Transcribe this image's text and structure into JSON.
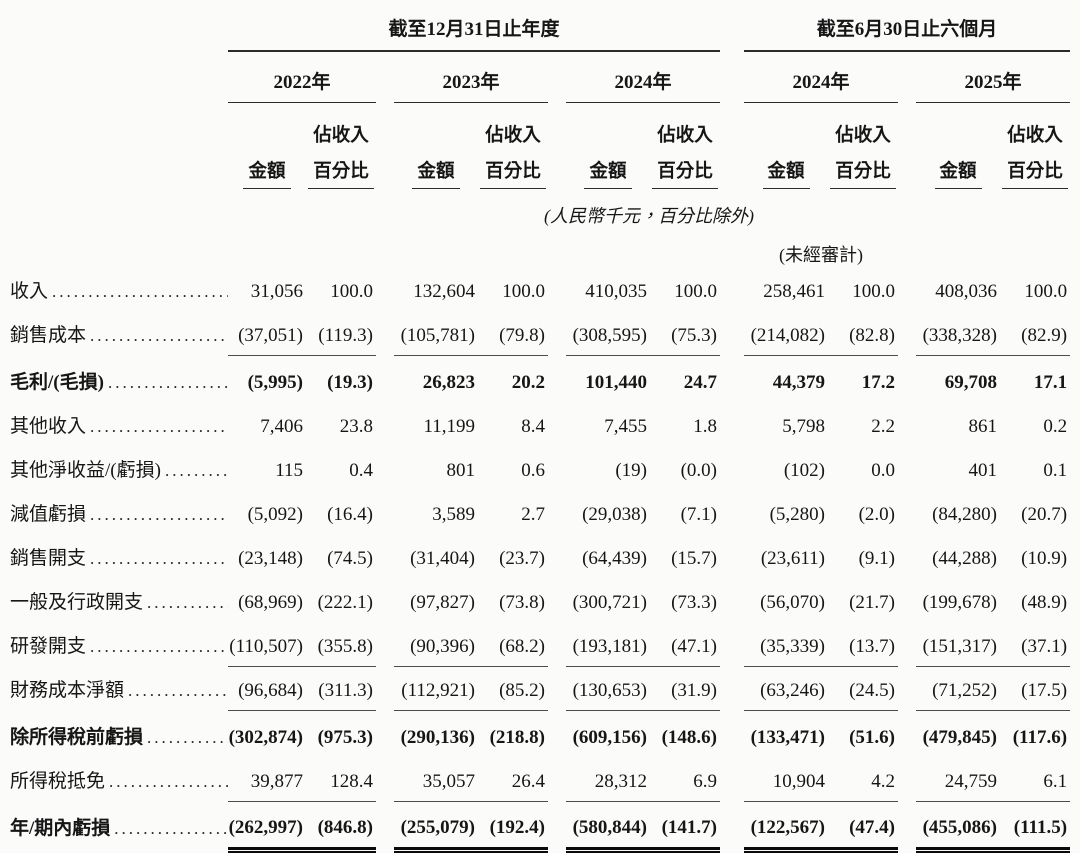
{
  "table": {
    "period_headers": [
      {
        "label": "截至12月31日止年度"
      },
      {
        "label": "截至6月30日止六個月"
      }
    ],
    "year_headers": [
      "2022年",
      "2023年",
      "2024年",
      "2024年",
      "2025年"
    ],
    "sub_headers": {
      "amount": "金額",
      "pct_top": "佔收入",
      "pct_bottom": "百分比"
    },
    "unit_note": "(人民幣千元，百分比除外)",
    "unaudited_note": "(未經審計)",
    "columns_per_year": [
      "金額",
      "佔收入百分比"
    ],
    "rows": [
      {
        "label": "收入",
        "bold": false,
        "underline": false,
        "double_underline": false,
        "values": [
          "31,056",
          "100.0",
          "132,604",
          "100.0",
          "410,035",
          "100.0",
          "258,461",
          "100.0",
          "408,036",
          "100.0"
        ]
      },
      {
        "label": "銷售成本",
        "bold": false,
        "underline": true,
        "double_underline": false,
        "values": [
          "(37,051)",
          "(119.3)",
          "(105,781)",
          "(79.8)",
          "(308,595)",
          "(75.3)",
          "(214,082)",
          "(82.8)",
          "(338,328)",
          "(82.9)"
        ]
      },
      {
        "label": "毛利/(毛損)",
        "bold": true,
        "underline": false,
        "double_underline": false,
        "values": [
          "(5,995)",
          "(19.3)",
          "26,823",
          "20.2",
          "101,440",
          "24.7",
          "44,379",
          "17.2",
          "69,708",
          "17.1"
        ]
      },
      {
        "label": "其他收入",
        "bold": false,
        "underline": false,
        "double_underline": false,
        "values": [
          "7,406",
          "23.8",
          "11,199",
          "8.4",
          "7,455",
          "1.8",
          "5,798",
          "2.2",
          "861",
          "0.2"
        ]
      },
      {
        "label": "其他淨收益/(虧損)",
        "bold": false,
        "underline": false,
        "double_underline": false,
        "values": [
          "115",
          "0.4",
          "801",
          "0.6",
          "(19)",
          "(0.0)",
          "(102)",
          "0.0",
          "401",
          "0.1"
        ]
      },
      {
        "label": "減值虧損",
        "bold": false,
        "underline": false,
        "double_underline": false,
        "values": [
          "(5,092)",
          "(16.4)",
          "3,589",
          "2.7",
          "(29,038)",
          "(7.1)",
          "(5,280)",
          "(2.0)",
          "(84,280)",
          "(20.7)"
        ]
      },
      {
        "label": "銷售開支",
        "bold": false,
        "underline": false,
        "double_underline": false,
        "values": [
          "(23,148)",
          "(74.5)",
          "(31,404)",
          "(23.7)",
          "(64,439)",
          "(15.7)",
          "(23,611)",
          "(9.1)",
          "(44,288)",
          "(10.9)"
        ]
      },
      {
        "label": "一般及行政開支",
        "bold": false,
        "underline": false,
        "double_underline": false,
        "values": [
          "(68,969)",
          "(222.1)",
          "(97,827)",
          "(73.8)",
          "(300,721)",
          "(73.3)",
          "(56,070)",
          "(21.7)",
          "(199,678)",
          "(48.9)"
        ]
      },
      {
        "label": "研發開支",
        "bold": false,
        "underline": true,
        "double_underline": false,
        "values": [
          "(110,507)",
          "(355.8)",
          "(90,396)",
          "(68.2)",
          "(193,181)",
          "(47.1)",
          "(35,339)",
          "(13.7)",
          "(151,317)",
          "(37.1)"
        ]
      },
      {
        "label": "財務成本淨額",
        "bold": false,
        "underline": true,
        "double_underline": false,
        "values": [
          "(96,684)",
          "(311.3)",
          "(112,921)",
          "(85.2)",
          "(130,653)",
          "(31.9)",
          "(63,246)",
          "(24.5)",
          "(71,252)",
          "(17.5)"
        ]
      },
      {
        "label": "除所得稅前虧損",
        "bold": true,
        "underline": false,
        "double_underline": false,
        "values": [
          "(302,874)",
          "(975.3)",
          "(290,136)",
          "(218.8)",
          "(609,156)",
          "(148.6)",
          "(133,471)",
          "(51.6)",
          "(479,845)",
          "(117.6)"
        ]
      },
      {
        "label": "所得稅抵免",
        "bold": false,
        "underline": true,
        "double_underline": false,
        "values": [
          "39,877",
          "128.4",
          "35,057",
          "26.4",
          "28,312",
          "6.9",
          "10,904",
          "4.2",
          "24,759",
          "6.1"
        ]
      },
      {
        "label": "年/期內虧損",
        "bold": true,
        "underline": false,
        "double_underline": true,
        "values": [
          "(262,997)",
          "(846.8)",
          "(255,079)",
          "(192.4)",
          "(580,844)",
          "(141.7)",
          "(122,567)",
          "(47.4)",
          "(455,086)",
          "(111.5)"
        ]
      }
    ]
  }
}
